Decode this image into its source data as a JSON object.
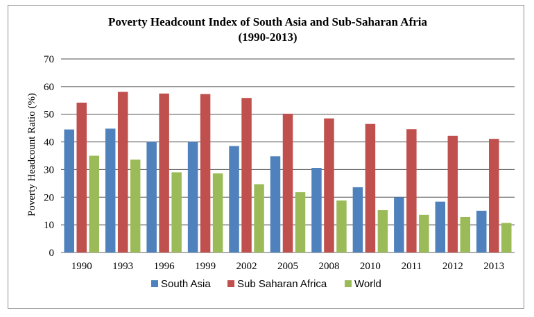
{
  "chart_data": {
    "type": "bar",
    "title": "Poverty Headcount Index of South Asia and Sub-Saharan Afria",
    "subtitle": "(1990-2013)",
    "xlabel": "",
    "ylabel": "Poverty  Headcount Ratio (%)",
    "ylim": [
      0,
      70
    ],
    "yticks": [
      0,
      10,
      20,
      30,
      40,
      50,
      60,
      70
    ],
    "grid": true,
    "legend_position": "bottom",
    "categories": [
      "1990",
      "1993",
      "1996",
      "1999",
      "2002",
      "2005",
      "2008",
      "2010",
      "2011",
      "2012",
      "2013"
    ],
    "series": [
      {
        "name": "South Asia",
        "color": "#4f81bd",
        "values": [
          44.5,
          44.8,
          40.0,
          40.0,
          38.5,
          34.8,
          30.6,
          23.6,
          20.0,
          18.4,
          15.1
        ]
      },
      {
        "name": "Sub Saharan Africa",
        "color": "#c0504d",
        "values": [
          54.2,
          58.1,
          57.5,
          57.3,
          55.9,
          50.2,
          48.5,
          46.5,
          44.6,
          42.2,
          41.1
        ]
      },
      {
        "name": "World",
        "color": "#9bbb59",
        "values": [
          35.0,
          33.6,
          29.0,
          28.6,
          24.7,
          21.8,
          18.8,
          15.3,
          13.6,
          12.8,
          10.7
        ]
      }
    ]
  }
}
